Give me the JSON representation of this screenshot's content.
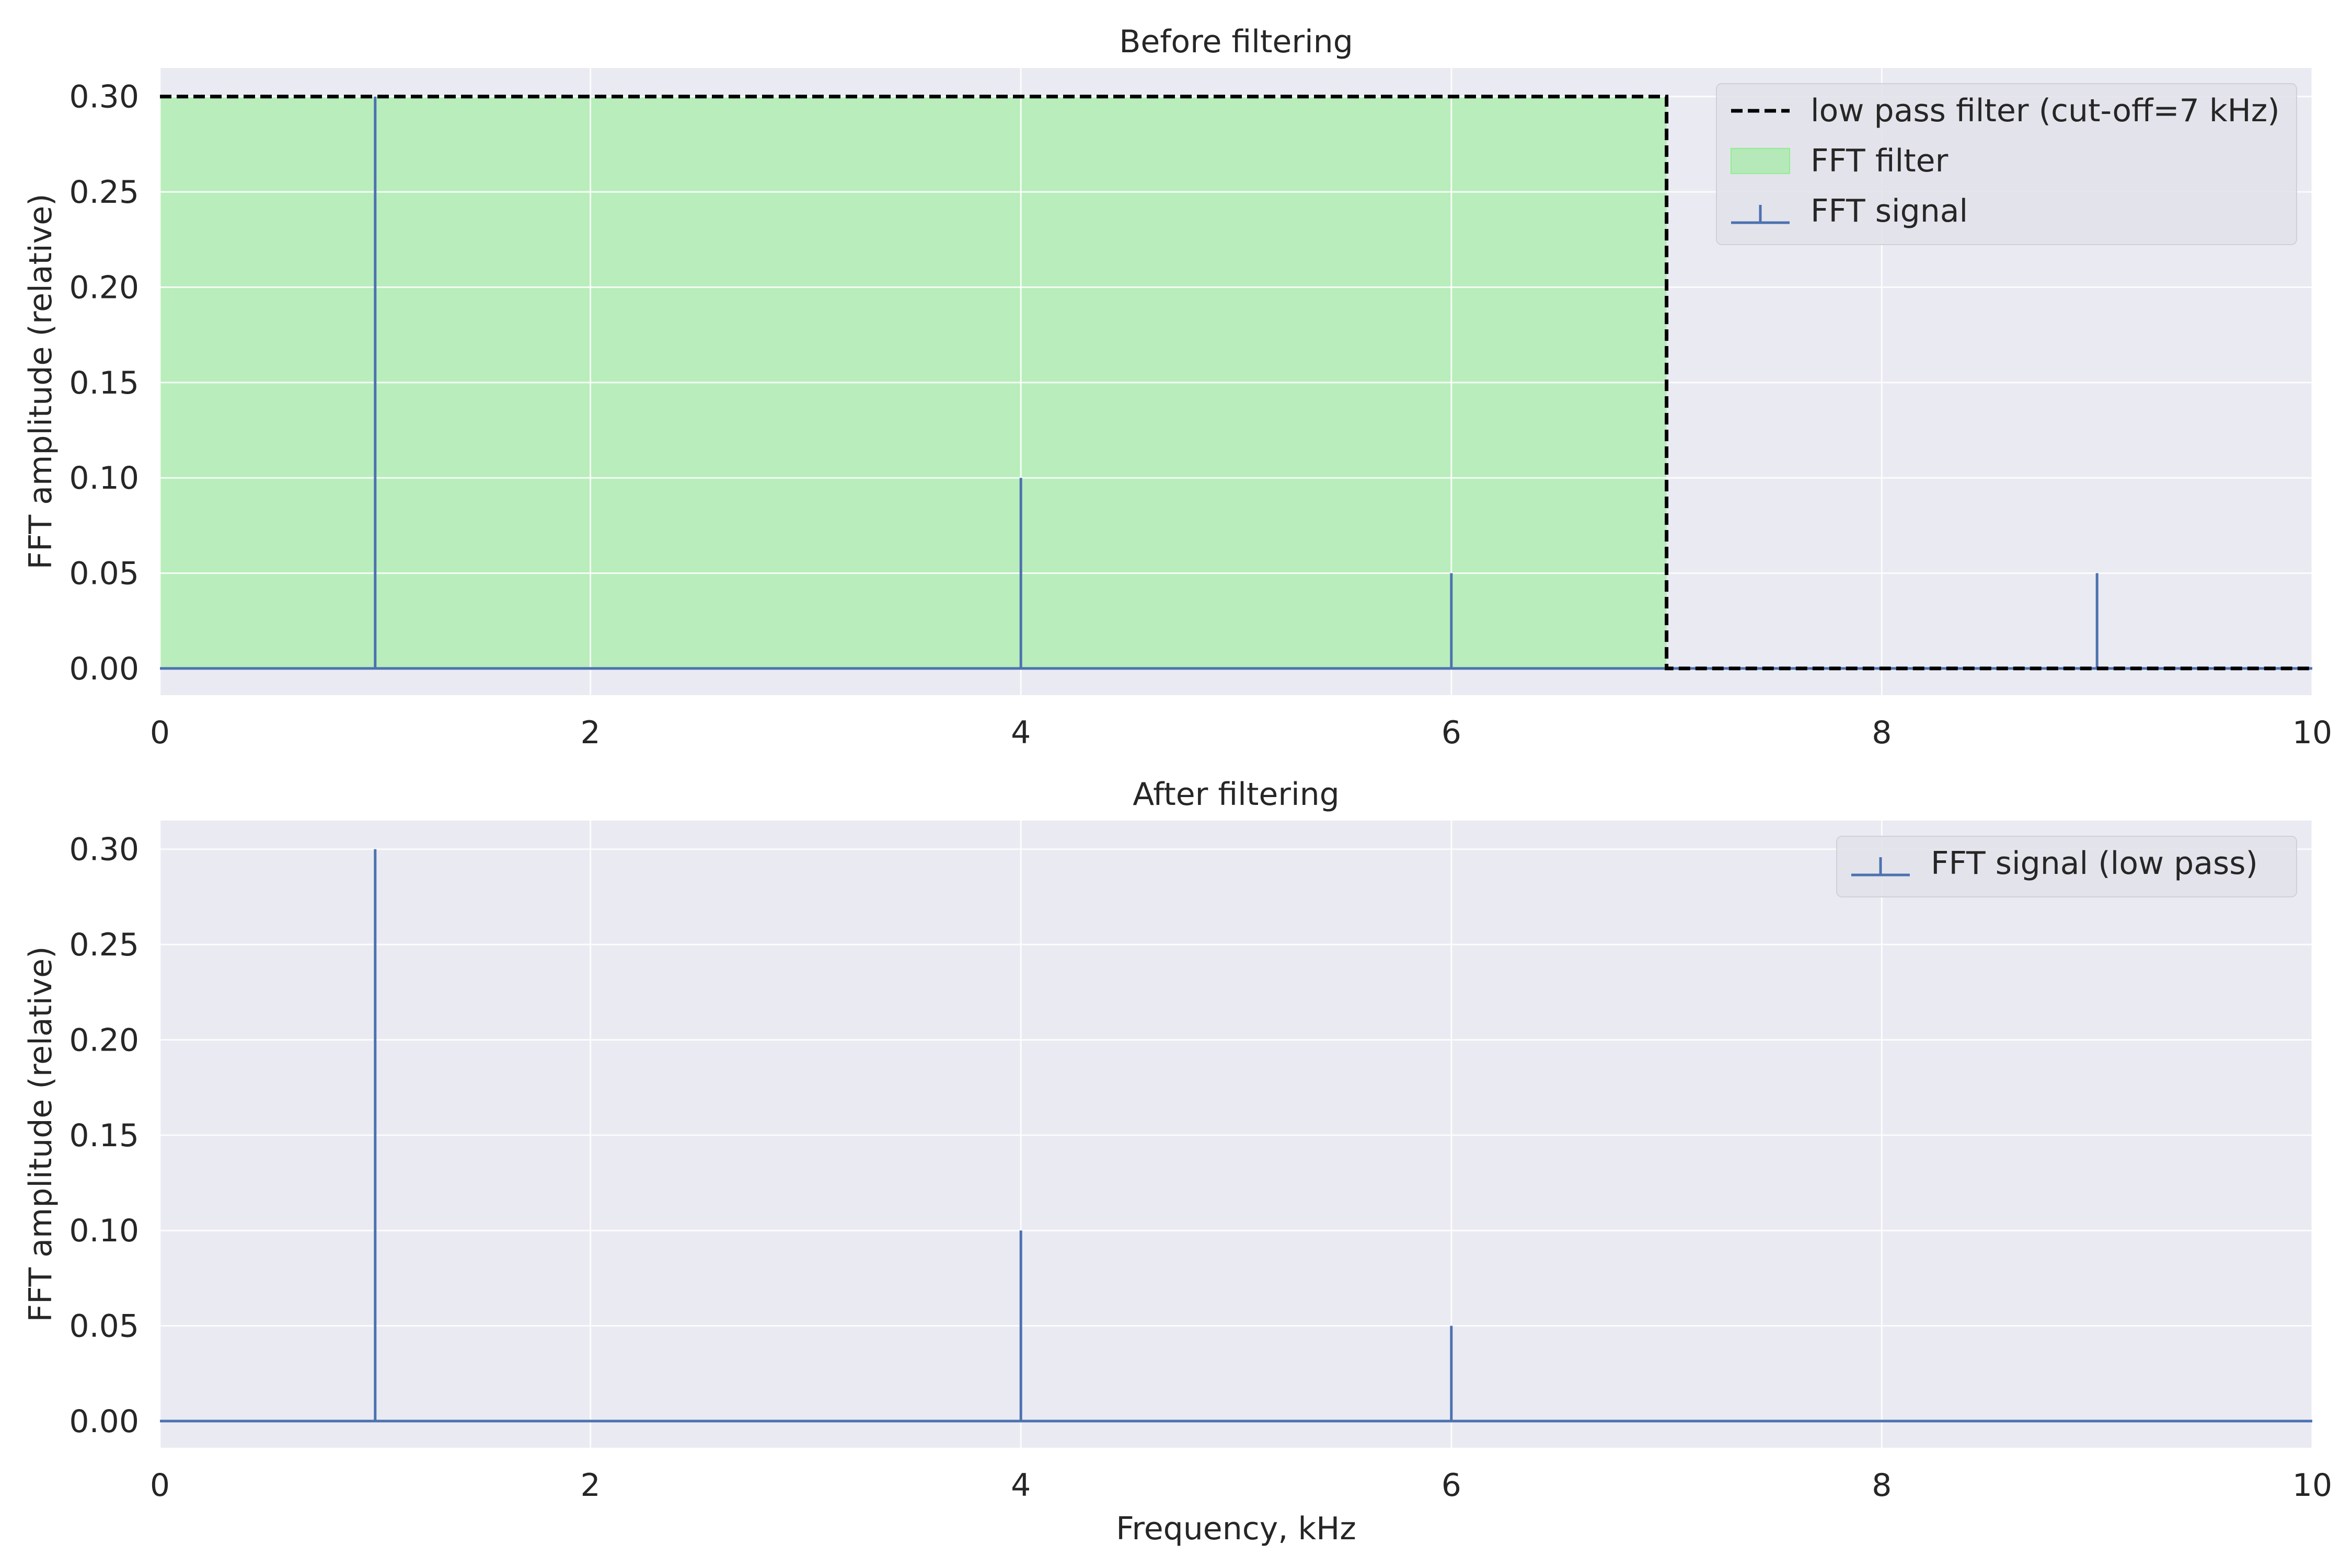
{
  "chart_data": [
    {
      "type": "stem",
      "title": "Before filtering",
      "xlabel": "",
      "ylabel": "FFT amplitude (relative)",
      "xlim": [
        0,
        10
      ],
      "ylim": [
        -0.014,
        0.315
      ],
      "xticks": [
        0,
        2,
        4,
        6,
        8,
        10
      ],
      "xtick_labels": [
        "0",
        "2",
        "4",
        "6",
        "8",
        "10"
      ],
      "yticks": [
        0.0,
        0.05,
        0.1,
        0.15,
        0.2,
        0.25,
        0.3
      ],
      "ytick_labels": [
        "0.00",
        "0.05",
        "0.10",
        "0.15",
        "0.20",
        "0.25",
        "0.30"
      ],
      "grid": true,
      "legend_position": "top-right",
      "series": [
        {
          "name": "FFT signal",
          "kind": "stem",
          "color": "#4c72b0",
          "x": [
            1,
            4,
            6,
            9
          ],
          "y": [
            0.3,
            0.1,
            0.05,
            0.05
          ]
        },
        {
          "name": "low pass filter (cut-off=7 kHz)",
          "kind": "step-line",
          "style": "dashed",
          "color": "#000000",
          "x": [
            0,
            7,
            7,
            10
          ],
          "y": [
            0.3,
            0.3,
            0.0,
            0.0
          ]
        },
        {
          "name": "FFT filter",
          "kind": "fill",
          "color": "#90ee90",
          "x": [
            0,
            7
          ],
          "y": [
            0.3,
            0.3
          ]
        }
      ],
      "legend": [
        {
          "label": "low pass filter (cut-off=7 kHz)",
          "marker": "dashed-line"
        },
        {
          "label": "FFT filter",
          "marker": "patch"
        },
        {
          "label": "FFT signal",
          "marker": "stem"
        }
      ]
    },
    {
      "type": "stem",
      "title": "After filtering",
      "xlabel": "Frequency, kHz",
      "ylabel": "FFT amplitude (relative)",
      "xlim": [
        0,
        10
      ],
      "ylim": [
        -0.014,
        0.315
      ],
      "xticks": [
        0,
        2,
        4,
        6,
        8,
        10
      ],
      "xtick_labels": [
        "0",
        "2",
        "4",
        "6",
        "8",
        "10"
      ],
      "yticks": [
        0.0,
        0.05,
        0.1,
        0.15,
        0.2,
        0.25,
        0.3
      ],
      "ytick_labels": [
        "0.00",
        "0.05",
        "0.10",
        "0.15",
        "0.20",
        "0.25",
        "0.30"
      ],
      "grid": true,
      "legend_position": "top-right",
      "series": [
        {
          "name": "FFT signal (low pass)",
          "kind": "stem",
          "color": "#4c72b0",
          "x": [
            1,
            4,
            6
          ],
          "y": [
            0.3,
            0.1,
            0.05
          ]
        }
      ],
      "legend": [
        {
          "label": "FFT signal (low pass)",
          "marker": "stem"
        }
      ]
    }
  ],
  "colors": {
    "axes_background": "#eaeaf2",
    "grid": "#ffffff",
    "stem": "#4c72b0",
    "filter_fill": "#90ee90",
    "filter_line": "#000000",
    "legend_background": "#e2e2ea",
    "legend_border": "#d0d0d8"
  }
}
